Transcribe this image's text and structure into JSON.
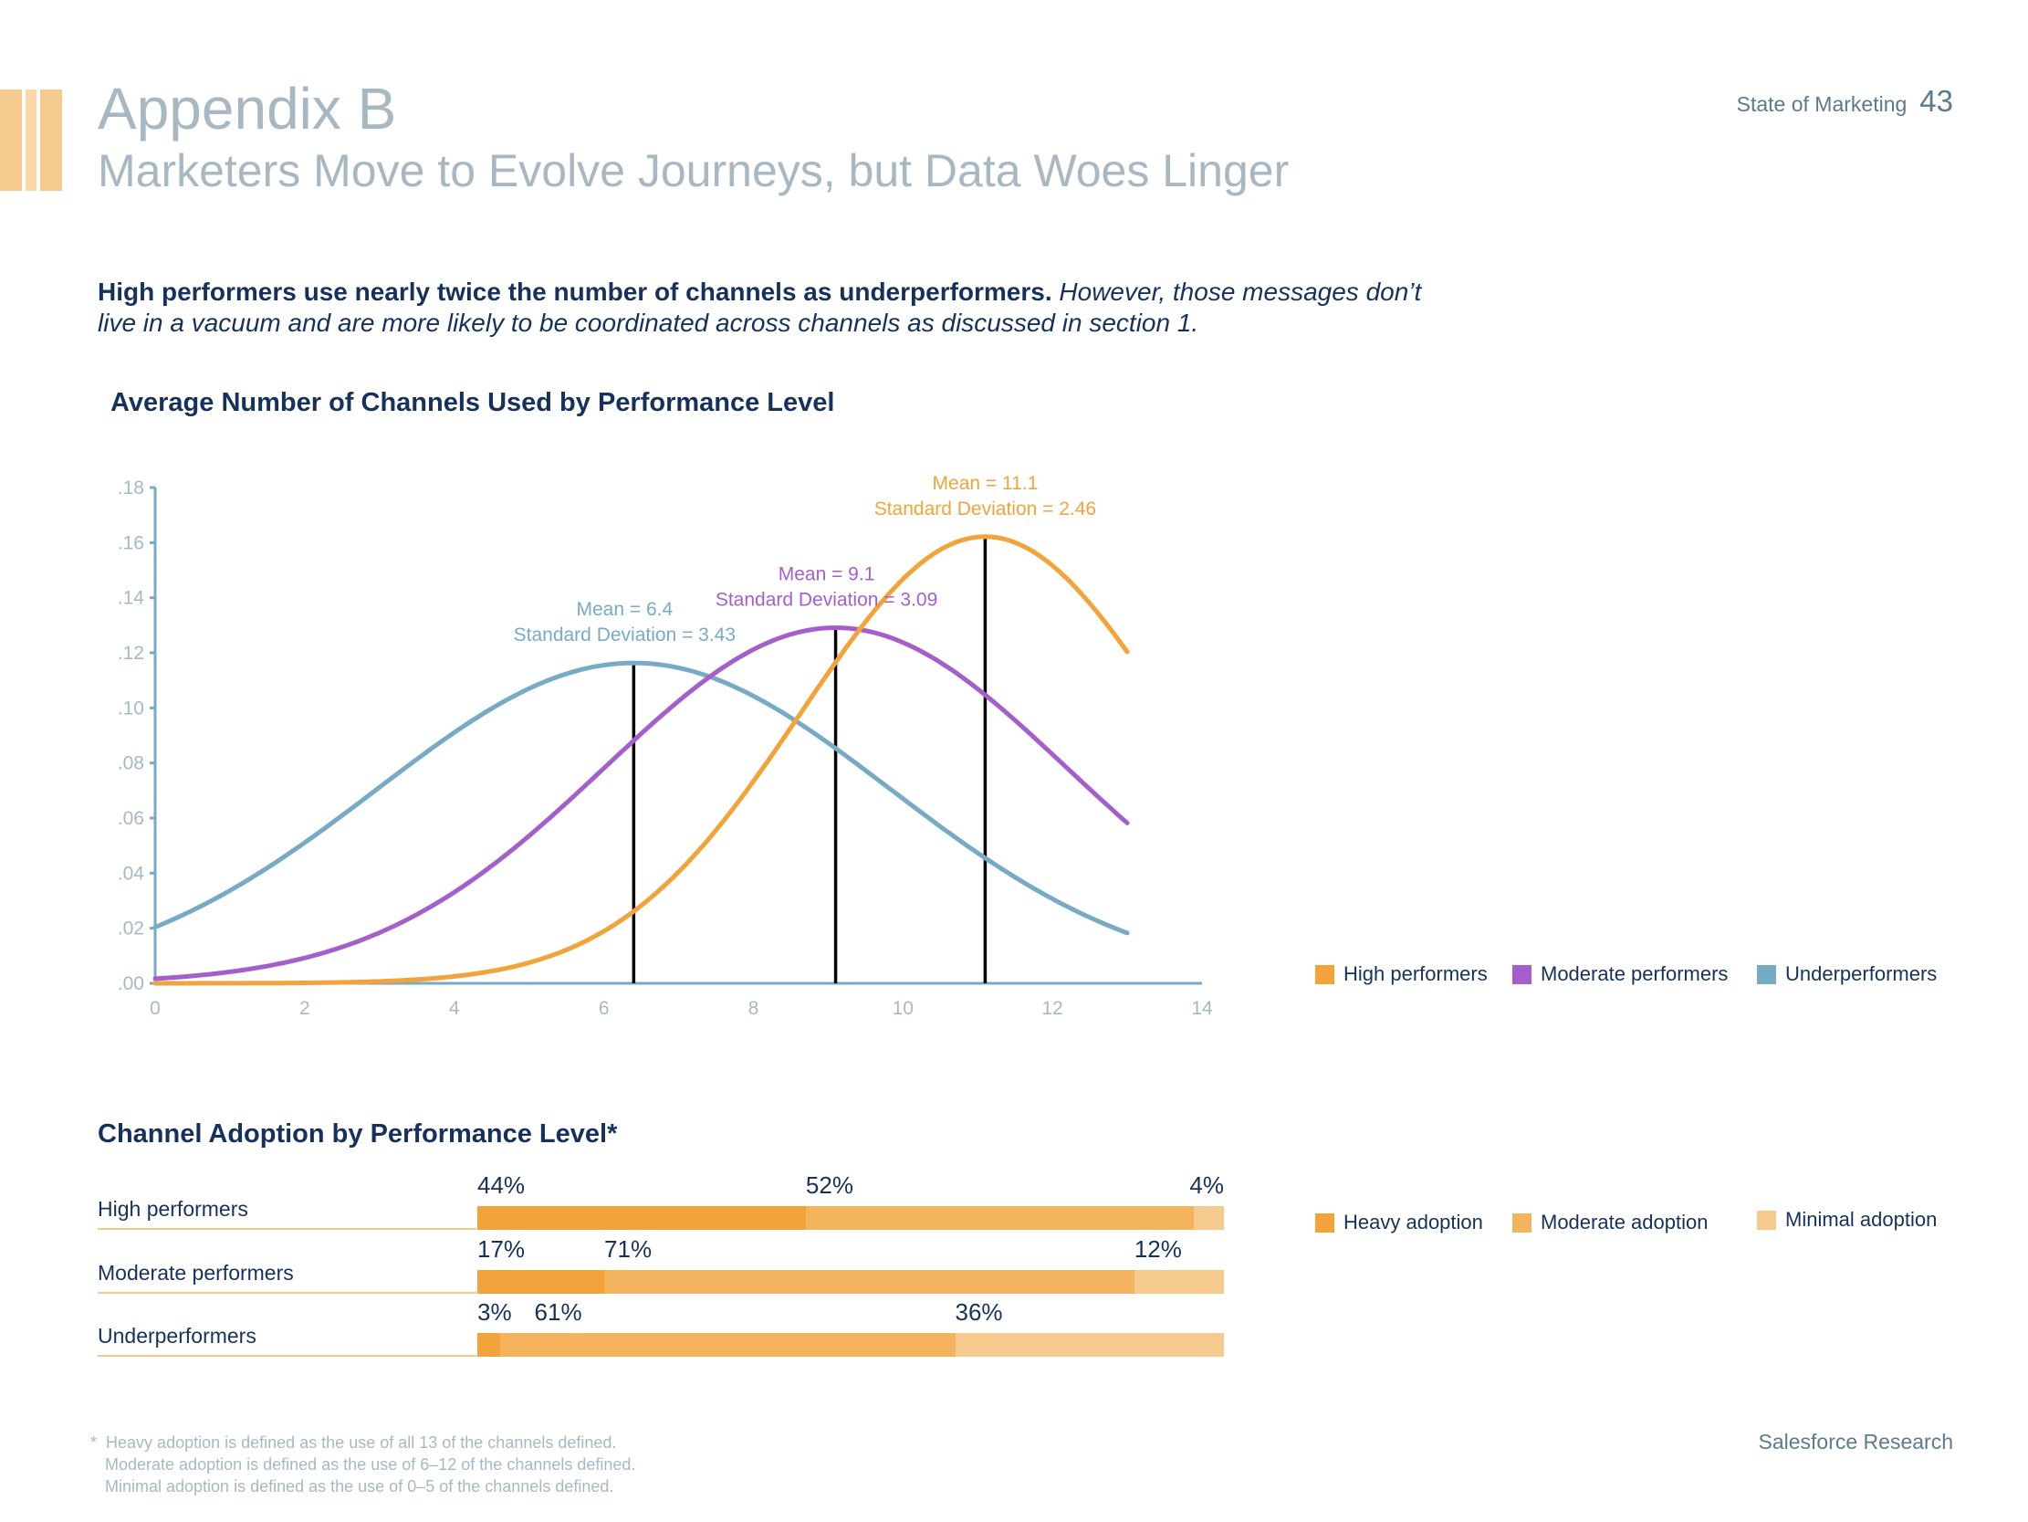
{
  "header": {
    "title": "Appendix B",
    "subtitle": "Marketers Move to Evolve Journeys, but Data Woes Linger",
    "section": "State of Marketing",
    "page_number": "43"
  },
  "intro": {
    "bold": "High performers use nearly twice the number of channels as underperformers.",
    "italic": "However, those messages don’t live in a vacuum and are more likely to be coordinated across channels as discussed in section 1."
  },
  "colors": {
    "high": "#f2a33a",
    "moderate": "#a55fca",
    "under": "#77aac5",
    "heavy": "#f2a33a",
    "moderate_adoption": "#f4b45e",
    "minimal": "#f6c98c",
    "axis": "#77aac5",
    "tick_text": "#a7b8c3"
  },
  "chart_data": [
    {
      "type": "line",
      "title": "Average Number of Channels Used by Performance Level",
      "xlabel": "",
      "ylabel": "",
      "xlim": [
        0,
        14
      ],
      "ylim": [
        0,
        0.18
      ],
      "x_ticks": [
        "0",
        "2",
        "4",
        "6",
        "8",
        "10",
        "12",
        "14"
      ],
      "y_ticks": [
        ".00",
        ".02",
        ".04",
        ".06",
        ".08",
        ".10",
        ".12",
        ".14",
        ".16",
        ".18"
      ],
      "legend_position": "bottom-right",
      "series": [
        {
          "name": "High performers",
          "key": "high",
          "mean": 11.1,
          "sd": 2.46,
          "x_range": [
            0,
            13
          ],
          "mean_label": "Mean = 11.1",
          "sd_label": "Standard Deviation = 2.46"
        },
        {
          "name": "Moderate performers",
          "key": "moderate",
          "mean": 9.1,
          "sd": 3.09,
          "x_range": [
            0,
            13
          ],
          "mean_label": "Mean = 9.1",
          "sd_label": "Standard Deviation = 3.09"
        },
        {
          "name": "Underperformers",
          "key": "under",
          "mean": 6.4,
          "sd": 3.43,
          "x_range": [
            0,
            13
          ],
          "mean_label": "Mean = 6.4",
          "sd_label": "Standard Deviation = 3.43"
        }
      ]
    },
    {
      "type": "bar",
      "orientation": "horizontal",
      "stacked": true,
      "title": "Channel Adoption by Performance Level*",
      "categories": [
        "High performers",
        "Moderate performers",
        "Underperformers"
      ],
      "series": [
        {
          "name": "Heavy adoption",
          "key": "heavy",
          "values": [
            44,
            17,
            3
          ],
          "labels": [
            "44%",
            "17%",
            "3%"
          ]
        },
        {
          "name": "Moderate adoption",
          "key": "moderate_adoption",
          "values": [
            52,
            71,
            61
          ],
          "labels": [
            "52%",
            "71%",
            "61%"
          ]
        },
        {
          "name": "Minimal adoption",
          "key": "minimal",
          "values": [
            4,
            12,
            36
          ],
          "labels": [
            "4%",
            "12%",
            "36%"
          ]
        }
      ],
      "legend_position": "right"
    }
  ],
  "footnote": {
    "marker": "*",
    "lines": [
      "Heavy adoption is defined as the use of all 13 of the channels defined.",
      "Moderate adoption is defined as the use of 6–12 of the channels defined.",
      "Minimal adoption is defined as the use of  0–5 of the channels defined."
    ]
  },
  "brand": "Salesforce Research"
}
